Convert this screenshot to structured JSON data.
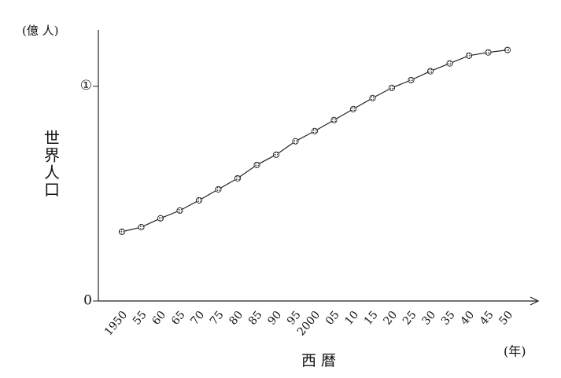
{
  "chart_data": {
    "type": "line",
    "y_unit": "(億 人)",
    "ylabel": "世界人口",
    "xlabel": "西 暦",
    "x_unit": "(年)",
    "categories": [
      "1950",
      "55",
      "60",
      "65",
      "70",
      "75",
      "80",
      "85",
      "90",
      "95",
      "2000",
      "05",
      "10",
      "15",
      "20",
      "25",
      "30",
      "35",
      "40",
      "45",
      "50"
    ],
    "values": [
      25.8,
      27.5,
      30.8,
      33.7,
      37.5,
      41.6,
      45.7,
      50.7,
      54.5,
      59.5,
      63.3,
      67.4,
      71.5,
      75.6,
      79.4,
      82.3,
      85.6,
      88.5,
      91.4,
      92.6,
      93.5
    ],
    "color": "#222222",
    "ylim": [
      0,
      101
    ],
    "yticks": [
      0,
      {
        "value": 80,
        "label": "①"
      }
    ]
  }
}
